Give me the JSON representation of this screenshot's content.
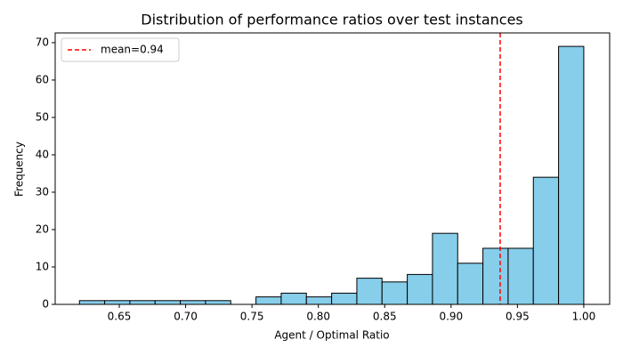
{
  "chart_data": {
    "type": "histogram",
    "title": "Distribution of performance ratios over test instances",
    "xlabel": "Agent / Optimal Ratio",
    "ylabel": "Frequency",
    "bins": [
      0.62,
      0.639,
      0.658,
      0.677,
      0.696,
      0.715,
      0.734,
      0.753,
      0.772,
      0.791,
      0.81,
      0.829,
      0.848,
      0.867,
      0.886,
      0.905,
      0.924,
      0.943,
      0.962,
      0.981,
      1.0
    ],
    "values": [
      1,
      1,
      1,
      1,
      1,
      1,
      0,
      2,
      3,
      2,
      3,
      7,
      6,
      8,
      19,
      11,
      15,
      15,
      34,
      69
    ],
    "color": "#87ceeb",
    "edgecolor": "#000000",
    "lines": [
      {
        "name": "mean=0.94",
        "x": 0.937,
        "color": "#ff0000",
        "style": "dashed"
      }
    ],
    "legend": "upper left",
    "xlim": [
      0.6017,
      1.0195
    ],
    "ylim": [
      0,
      72.6
    ],
    "xticks": [
      0.65,
      {
        "value": 0.7,
        "label": "0.70"
      },
      0.75,
      {
        "value": 0.8,
        "label": "0.80"
      },
      0.85,
      {
        "value": 0.9,
        "label": "0.90"
      },
      0.95,
      {
        "value": 1.0,
        "label": "1.00"
      }
    ],
    "yticks": [
      0,
      10,
      20,
      30,
      40,
      50,
      60,
      70
    ]
  }
}
